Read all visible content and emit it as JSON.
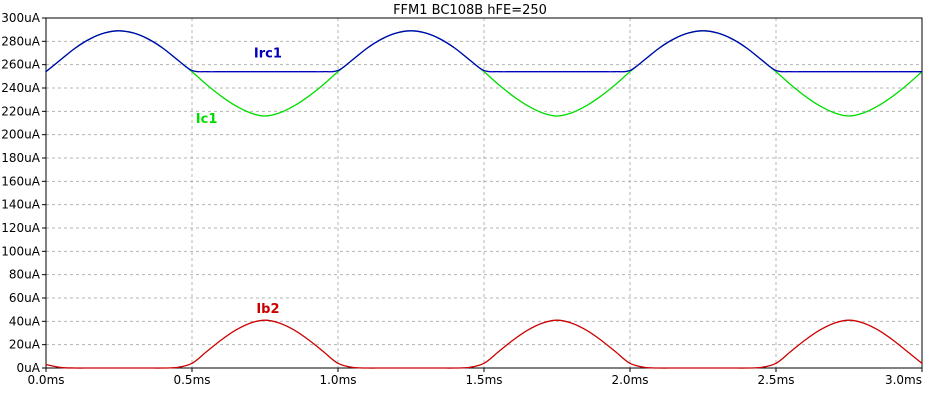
{
  "chart_data": {
    "type": "line",
    "title": "FFM1  BC108B hFE=250",
    "xlabel": "",
    "ylabel": "",
    "xlim": [
      0,
      3.0
    ],
    "ylim": [
      0,
      300
    ],
    "grid": true,
    "x_ticks": [
      {
        "value": 0.0,
        "label": "0.0ms"
      },
      {
        "value": 0.5,
        "label": "0.5ms"
      },
      {
        "value": 1.0,
        "label": "1.0ms"
      },
      {
        "value": 1.5,
        "label": "1.5ms"
      },
      {
        "value": 2.0,
        "label": "2.0ms"
      },
      {
        "value": 2.5,
        "label": "2.5ms"
      },
      {
        "value": 3.0,
        "label": "3.0ms"
      }
    ],
    "y_ticks": [
      {
        "value": 0,
        "label": "0uA"
      },
      {
        "value": 20,
        "label": "20uA"
      },
      {
        "value": 40,
        "label": "40uA"
      },
      {
        "value": 60,
        "label": "60uA"
      },
      {
        "value": 80,
        "label": "80uA"
      },
      {
        "value": 100,
        "label": "100uA"
      },
      {
        "value": 120,
        "label": "120uA"
      },
      {
        "value": 140,
        "label": "140uA"
      },
      {
        "value": 160,
        "label": "160uA"
      },
      {
        "value": 180,
        "label": "180uA"
      },
      {
        "value": 200,
        "label": "200uA"
      },
      {
        "value": 220,
        "label": "220uA"
      },
      {
        "value": 240,
        "label": "240uA"
      },
      {
        "value": 260,
        "label": "260uA"
      },
      {
        "value": 280,
        "label": "280uA"
      },
      {
        "value": 300,
        "label": "300uA"
      }
    ],
    "series": [
      {
        "name": "Ic1",
        "color": "#00dd00",
        "label_at": {
          "x": 0.55,
          "y": 210
        },
        "x": [
          0.0,
          0.05,
          0.1,
          0.15,
          0.2,
          0.25,
          0.3,
          0.35,
          0.4,
          0.45,
          0.5,
          0.55,
          0.6,
          0.65,
          0.7,
          0.75,
          0.8,
          0.85,
          0.9,
          0.95,
          1.0,
          1.05,
          1.1,
          1.15,
          1.2,
          1.25,
          1.3,
          1.35,
          1.4,
          1.45,
          1.5,
          1.55,
          1.6,
          1.65,
          1.7,
          1.75,
          1.8,
          1.85,
          1.9,
          1.95,
          2.0,
          2.05,
          2.1,
          2.15,
          2.2,
          2.25,
          2.3,
          2.35,
          2.4,
          2.45,
          2.5,
          2.55,
          2.6,
          2.65,
          2.7,
          2.75,
          2.8,
          2.85,
          2.9,
          2.95,
          3.0
        ],
        "values": [
          254,
          264.2,
          274.2,
          282.0,
          287.1,
          289.0,
          287.1,
          282.0,
          274.2,
          264.2,
          254,
          242.9,
          233.0,
          224.7,
          218.7,
          216.0,
          218.7,
          224.7,
          233.0,
          242.9,
          254,
          264.2,
          274.2,
          282.0,
          287.1,
          289.0,
          287.1,
          282.0,
          274.2,
          264.2,
          254,
          242.9,
          233.0,
          224.7,
          218.7,
          216.0,
          218.7,
          224.7,
          233.0,
          242.9,
          254,
          264.2,
          274.2,
          282.0,
          287.1,
          289.0,
          287.1,
          282.0,
          274.2,
          264.2,
          254,
          242.9,
          233.0,
          224.7,
          218.7,
          216.0,
          218.7,
          224.7,
          233.0,
          242.9,
          254
        ]
      },
      {
        "name": "Irc1",
        "color": "#0000bb",
        "label_at": {
          "x": 0.76,
          "y": 266
        },
        "x": [
          0.0,
          0.05,
          0.1,
          0.15,
          0.2,
          0.25,
          0.3,
          0.35,
          0.4,
          0.45,
          0.5,
          0.55,
          0.6,
          0.65,
          0.7,
          0.75,
          0.8,
          0.85,
          0.9,
          0.95,
          1.0,
          1.05,
          1.1,
          1.15,
          1.2,
          1.25,
          1.3,
          1.35,
          1.4,
          1.45,
          1.5,
          1.55,
          1.6,
          1.65,
          1.7,
          1.75,
          1.8,
          1.85,
          1.9,
          1.95,
          2.0,
          2.05,
          2.1,
          2.15,
          2.2,
          2.25,
          2.3,
          2.35,
          2.4,
          2.45,
          2.5,
          2.55,
          2.6,
          2.65,
          2.7,
          2.75,
          2.8,
          2.85,
          2.9,
          2.95,
          3.0
        ],
        "values": [
          254,
          264.2,
          274.2,
          282.0,
          287.1,
          289.0,
          287.1,
          282.0,
          274.2,
          264.2,
          255,
          254,
          254,
          254,
          254,
          254,
          254,
          254,
          254,
          254,
          255,
          264.2,
          274.2,
          282.0,
          287.1,
          289.0,
          287.1,
          282.0,
          274.2,
          264.2,
          255,
          254,
          254,
          254,
          254,
          254,
          254,
          254,
          254,
          254,
          255,
          264.2,
          274.2,
          282.0,
          287.1,
          289.0,
          287.1,
          282.0,
          274.2,
          264.2,
          255,
          254,
          254,
          254,
          254,
          254,
          254,
          254,
          254,
          254,
          254
        ]
      },
      {
        "name": "Ib2",
        "color": "#cc0000",
        "label_at": {
          "x": 0.76,
          "y": 47
        },
        "x": [
          0.0,
          0.05,
          0.1,
          0.15,
          0.2,
          0.25,
          0.3,
          0.35,
          0.4,
          0.45,
          0.5,
          0.55,
          0.6,
          0.65,
          0.7,
          0.75,
          0.8,
          0.85,
          0.9,
          0.95,
          1.0,
          1.05,
          1.1,
          1.15,
          1.2,
          1.25,
          1.3,
          1.35,
          1.4,
          1.45,
          1.5,
          1.55,
          1.6,
          1.65,
          1.7,
          1.75,
          1.8,
          1.85,
          1.9,
          1.95,
          2.0,
          2.05,
          2.1,
          2.15,
          2.2,
          2.25,
          2.3,
          2.35,
          2.4,
          2.45,
          2.5,
          2.55,
          2.6,
          2.65,
          2.7,
          2.75,
          2.8,
          2.85,
          2.9,
          2.95,
          3.0
        ],
        "values": [
          3,
          0.5,
          0,
          0,
          0,
          0,
          0,
          0,
          0,
          0.5,
          4,
          14,
          24,
          32.5,
          38.5,
          41,
          38.5,
          32.5,
          24,
          14,
          4,
          0.5,
          0,
          0,
          0,
          0,
          0,
          0,
          0,
          0.5,
          4,
          14,
          24,
          32.5,
          38.5,
          41,
          38.5,
          32.5,
          24,
          14,
          4,
          0.5,
          0,
          0,
          0,
          0,
          0,
          0,
          0,
          0.5,
          4,
          14,
          24,
          32.5,
          38.5,
          41,
          38.5,
          32.5,
          24,
          14,
          4
        ]
      }
    ]
  }
}
